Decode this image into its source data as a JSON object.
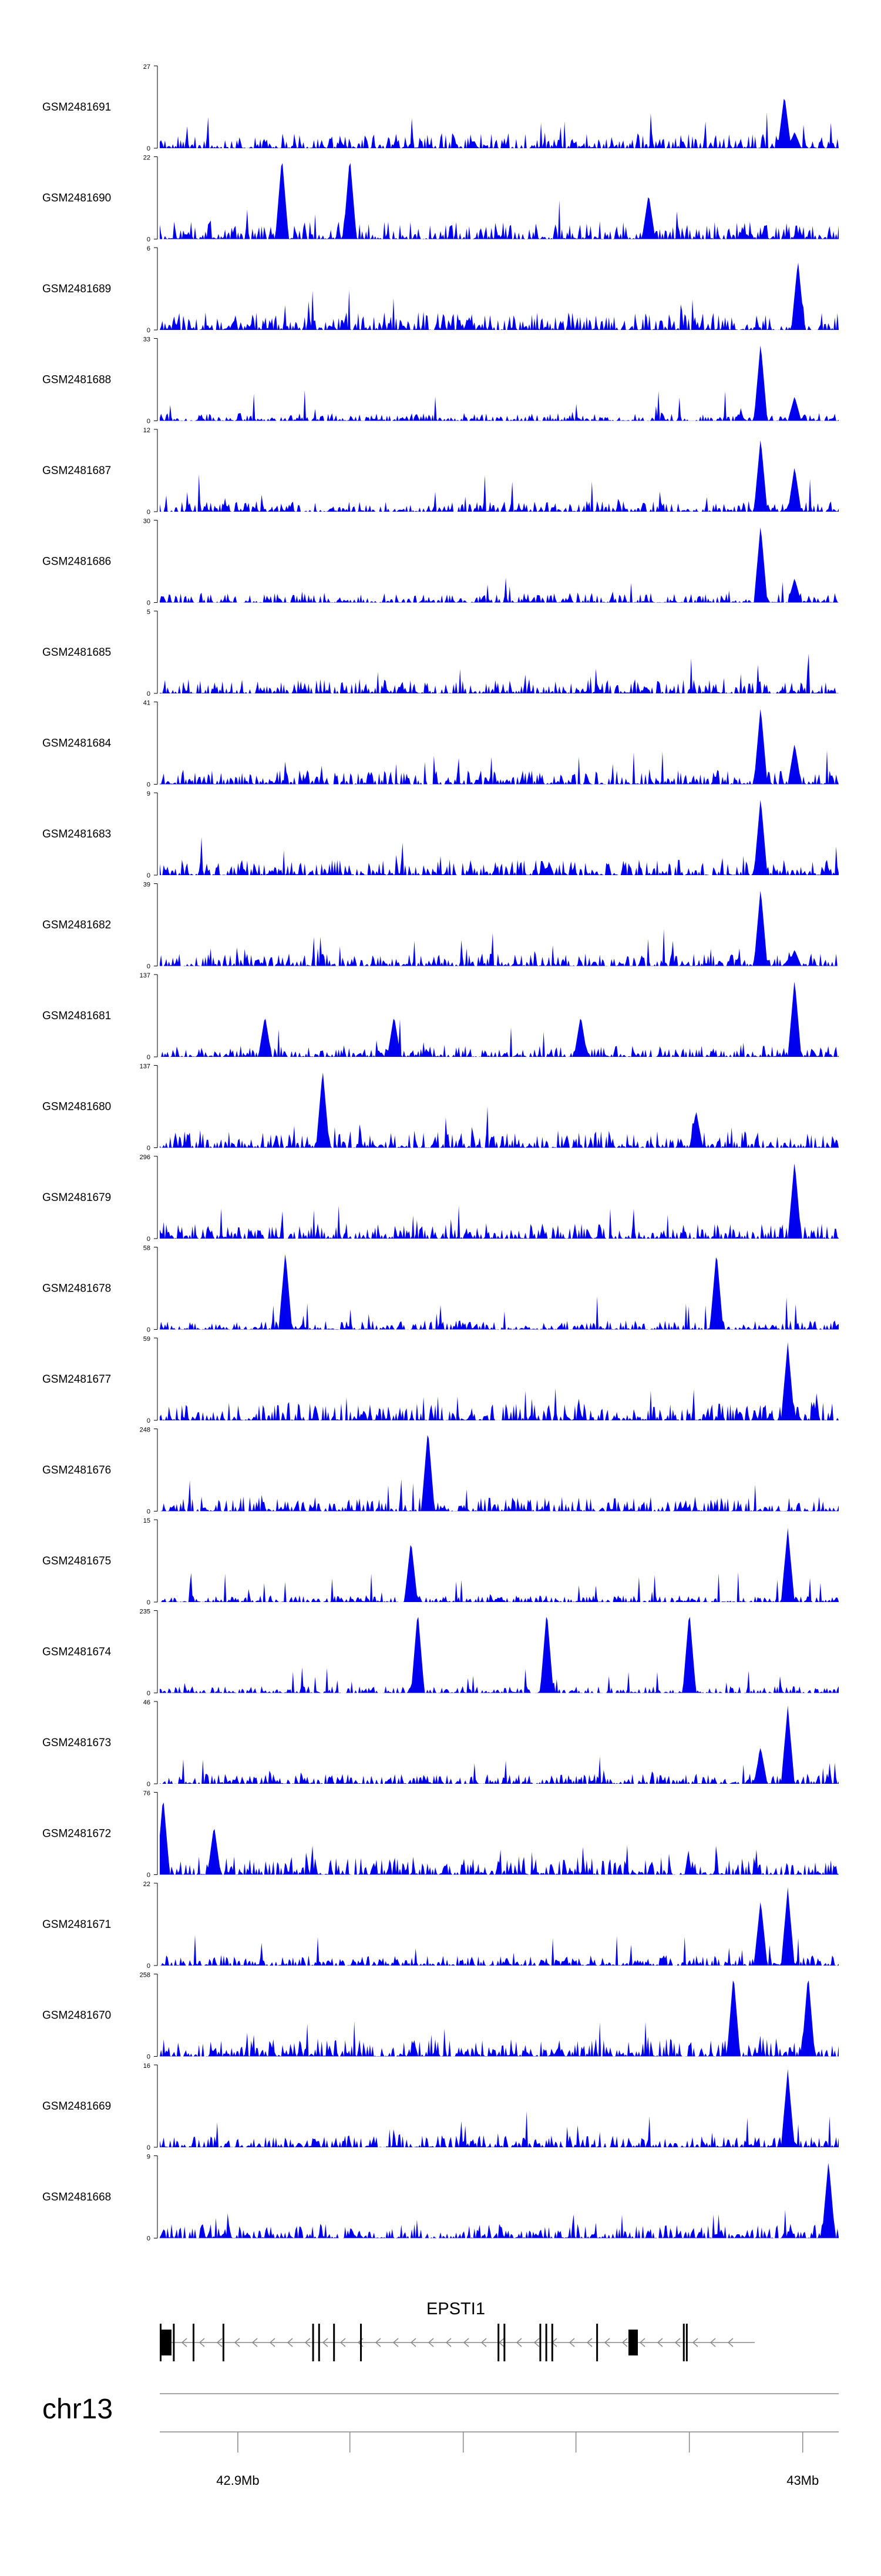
{
  "chart_data": {
    "type": "area",
    "colors": {
      "signal": "#0000ee",
      "axis": "#000000",
      "gene": "#000000",
      "strand": "#888888"
    },
    "tracks": [
      {
        "name": "GSM2481691",
        "ymax": "27",
        "peaks": [
          [
            0.92,
            0.65
          ],
          [
            0.935,
            0.2
          ]
        ]
      },
      {
        "name": "GSM2481690",
        "ymax": "22",
        "peaks": [
          [
            0.18,
            1.0
          ],
          [
            0.28,
            1.0
          ],
          [
            0.72,
            0.55
          ]
        ]
      },
      {
        "name": "GSM2481689",
        "ymax": "6",
        "peaks": [
          [
            0.94,
            0.85
          ]
        ]
      },
      {
        "name": "GSM2481688",
        "ymax": "33",
        "peaks": [
          [
            0.885,
            0.95
          ],
          [
            0.935,
            0.3
          ]
        ]
      },
      {
        "name": "GSM2481687",
        "ymax": "12",
        "peaks": [
          [
            0.885,
            0.9
          ],
          [
            0.935,
            0.55
          ]
        ]
      },
      {
        "name": "GSM2481686",
        "ymax": "30",
        "peaks": [
          [
            0.885,
            0.95
          ],
          [
            0.935,
            0.3
          ]
        ]
      },
      {
        "name": "GSM2481685",
        "ymax": "5",
        "peaks": []
      },
      {
        "name": "GSM2481684",
        "ymax": "41",
        "peaks": [
          [
            0.885,
            0.95
          ],
          [
            0.935,
            0.5
          ]
        ]
      },
      {
        "name": "GSM2481683",
        "ymax": "9",
        "peaks": [
          [
            0.885,
            0.95
          ]
        ]
      },
      {
        "name": "GSM2481682",
        "ymax": "39",
        "peaks": [
          [
            0.885,
            0.95
          ],
          [
            0.935,
            0.2
          ]
        ]
      },
      {
        "name": "GSM2481681",
        "ymax": "137",
        "peaks": [
          [
            0.155,
            0.5
          ],
          [
            0.345,
            0.5
          ],
          [
            0.62,
            0.5
          ],
          [
            0.935,
            0.95
          ]
        ]
      },
      {
        "name": "GSM2481680",
        "ymax": "137",
        "peaks": [
          [
            0.24,
            0.95
          ],
          [
            0.79,
            0.45
          ]
        ]
      },
      {
        "name": "GSM2481679",
        "ymax": "296",
        "peaks": [
          [
            0.935,
            0.95
          ]
        ]
      },
      {
        "name": "GSM2481678",
        "ymax": "58",
        "peaks": [
          [
            0.185,
            0.95
          ],
          [
            0.82,
            0.95
          ]
        ]
      },
      {
        "name": "GSM2481677",
        "ymax": "59",
        "peaks": [
          [
            0.925,
            0.95
          ]
        ]
      },
      {
        "name": "GSM2481676",
        "ymax": "248",
        "peaks": [
          [
            0.395,
            1.0
          ]
        ]
      },
      {
        "name": "GSM2481675",
        "ymax": "15",
        "peaks": [
          [
            0.925,
            0.9
          ],
          [
            0.37,
            0.75
          ]
        ]
      },
      {
        "name": "GSM2481674",
        "ymax": "235",
        "peaks": [
          [
            0.38,
            1.0
          ],
          [
            0.57,
            1.0
          ],
          [
            0.78,
            1.0
          ]
        ]
      },
      {
        "name": "GSM2481673",
        "ymax": "46",
        "peaks": [
          [
            0.925,
            0.95
          ],
          [
            0.885,
            0.45
          ]
        ]
      },
      {
        "name": "GSM2481672",
        "ymax": "76",
        "peaks": [
          [
            0.005,
            0.95
          ],
          [
            0.08,
            0.6
          ]
        ]
      },
      {
        "name": "GSM2481671",
        "ymax": "22",
        "peaks": [
          [
            0.925,
            0.95
          ],
          [
            0.885,
            0.8
          ]
        ]
      },
      {
        "name": "GSM2481670",
        "ymax": "258",
        "peaks": [
          [
            0.845,
            1.0
          ],
          [
            0.955,
            1.0
          ]
        ]
      },
      {
        "name": "GSM2481669",
        "ymax": "16",
        "peaks": [
          [
            0.925,
            0.95
          ]
        ]
      },
      {
        "name": "GSM2481668",
        "ymax": "9",
        "peaks": [
          [
            0.985,
            0.95
          ]
        ]
      }
    ],
    "gene": {
      "name": "EPSTI1",
      "strand": "-",
      "exons": [
        0.0,
        0.022,
        0.055,
        0.105,
        0.255,
        0.265,
        0.29,
        0.335,
        0.565,
        0.575,
        0.635,
        0.645,
        0.655,
        0.73,
        0.875,
        0.88
      ]
    },
    "axis": {
      "chromosome": "chr13",
      "labels": [
        "42.9Mb",
        "43Mb"
      ],
      "tick_positions": [
        0.115,
        0.28,
        0.447,
        0.613,
        0.78,
        0.947
      ]
    },
    "ymin_label": "0"
  }
}
